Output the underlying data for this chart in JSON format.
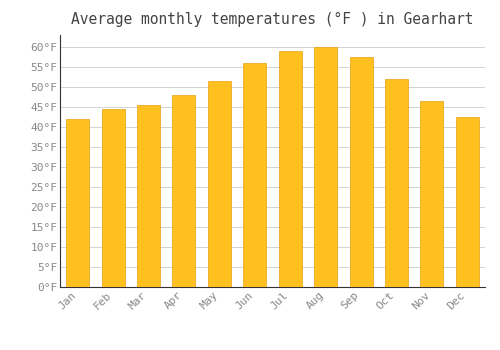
{
  "title": "Average monthly temperatures (°F ) in Gearhart",
  "months": [
    "Jan",
    "Feb",
    "Mar",
    "Apr",
    "May",
    "Jun",
    "Jul",
    "Aug",
    "Sep",
    "Oct",
    "Nov",
    "Dec"
  ],
  "values": [
    42.0,
    44.5,
    45.5,
    48.0,
    51.5,
    56.0,
    59.0,
    60.0,
    57.5,
    52.0,
    46.5,
    42.5
  ],
  "bar_color": "#FFC020",
  "bar_edge_color": "#E8A010",
  "background_color": "#FFFFFF",
  "grid_color": "#CCCCCC",
  "text_color": "#888888",
  "title_color": "#444444",
  "ylim": [
    0,
    63
  ],
  "yticks": [
    0,
    5,
    10,
    15,
    20,
    25,
    30,
    35,
    40,
    45,
    50,
    55,
    60
  ],
  "ytick_labels": [
    "0°F",
    "5°F",
    "10°F",
    "15°F",
    "20°F",
    "25°F",
    "30°F",
    "35°F",
    "40°F",
    "45°F",
    "50°F",
    "55°F",
    "60°F"
  ],
  "title_fontsize": 10.5,
  "tick_fontsize": 8,
  "bar_width": 0.65
}
